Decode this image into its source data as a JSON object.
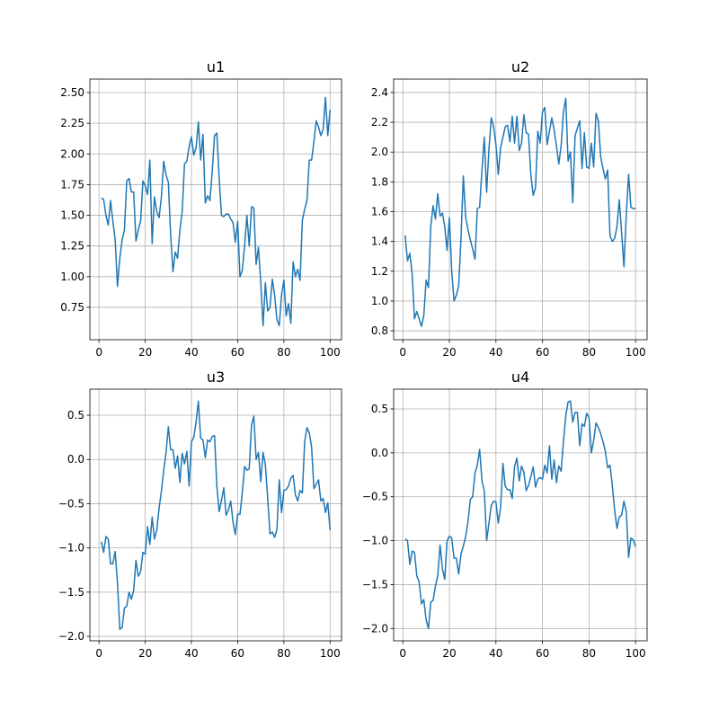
{
  "chart_data": [
    {
      "type": "line",
      "title": "u1",
      "color": "#1f77b4",
      "grid": true,
      "x": [
        1,
        2,
        3,
        4,
        5,
        6,
        7,
        8,
        9,
        10,
        11,
        12,
        13,
        14,
        15,
        16,
        17,
        18,
        19,
        20,
        21,
        22,
        23,
        24,
        25,
        26,
        27,
        28,
        29,
        30,
        31,
        32,
        33,
        34,
        35,
        36,
        37,
        38,
        39,
        40,
        41,
        42,
        43,
        44,
        45,
        46,
        47,
        48,
        49,
        50,
        51,
        52,
        53,
        54,
        55,
        56,
        57,
        58,
        59,
        60,
        61,
        62,
        63,
        64,
        65,
        66,
        67,
        68,
        69,
        70,
        71,
        72,
        73,
        74,
        75,
        76,
        77,
        78,
        79,
        80,
        81,
        82,
        83,
        84,
        85,
        86,
        87,
        88,
        89,
        90,
        91,
        92,
        93,
        94,
        95,
        96,
        97,
        98,
        99,
        100
      ],
      "values": [
        1.64,
        1.63,
        1.5,
        1.42,
        1.62,
        1.45,
        1.3,
        0.92,
        1.15,
        1.3,
        1.38,
        1.78,
        1.8,
        1.69,
        1.69,
        1.29,
        1.38,
        1.45,
        1.78,
        1.74,
        1.67,
        1.95,
        1.27,
        1.65,
        1.53,
        1.48,
        1.65,
        1.94,
        1.83,
        1.77,
        1.34,
        1.04,
        1.2,
        1.15,
        1.38,
        1.53,
        1.92,
        1.94,
        2.06,
        2.14,
        1.99,
        2.05,
        2.26,
        1.95,
        2.16,
        1.6,
        1.66,
        1.62,
        1.86,
        2.15,
        2.17,
        1.8,
        1.5,
        1.49,
        1.51,
        1.51,
        1.47,
        1.44,
        1.28,
        1.45,
        1.0,
        1.05,
        1.25,
        1.5,
        1.25,
        1.57,
        1.56,
        1.1,
        1.24,
        0.95,
        0.6,
        0.95,
        0.72,
        0.75,
        0.98,
        0.85,
        0.65,
        0.6,
        0.85,
        0.97,
        0.68,
        0.78,
        0.62,
        1.12,
        1.0,
        1.06,
        0.97,
        1.46,
        1.55,
        1.62,
        1.95,
        1.95,
        2.1,
        2.27,
        2.22,
        2.15,
        2.2,
        2.46,
        2.15,
        2.36
      ],
      "xlim": [
        -3.95,
        104.95
      ],
      "ylim": [
        0.486,
        2.61
      ],
      "xticks": [
        0,
        20,
        40,
        60,
        80,
        100
      ],
      "yticks": [
        {
          "value": 0.75,
          "label": "0.75"
        },
        {
          "value": 1.0,
          "label": "1.00"
        },
        {
          "value": 1.25,
          "label": "1.25"
        },
        {
          "value": 1.5,
          "label": "1.50"
        },
        {
          "value": 1.75,
          "label": "1.75"
        },
        {
          "value": 2.0,
          "label": "2.00"
        },
        {
          "value": 2.25,
          "label": "2.25"
        },
        {
          "value": 2.5,
          "label": "2.50"
        }
      ]
    },
    {
      "type": "line",
      "title": "u2",
      "color": "#1f77b4",
      "grid": true,
      "x": [
        1,
        2,
        3,
        4,
        5,
        6,
        7,
        8,
        9,
        10,
        11,
        12,
        13,
        14,
        15,
        16,
        17,
        18,
        19,
        20,
        21,
        22,
        23,
        24,
        25,
        26,
        27,
        28,
        29,
        30,
        31,
        32,
        33,
        34,
        35,
        36,
        37,
        38,
        39,
        40,
        41,
        42,
        43,
        44,
        45,
        46,
        47,
        48,
        49,
        50,
        51,
        52,
        53,
        54,
        55,
        56,
        57,
        58,
        59,
        60,
        61,
        62,
        63,
        64,
        65,
        66,
        67,
        68,
        69,
        70,
        71,
        72,
        73,
        74,
        75,
        76,
        77,
        78,
        79,
        80,
        81,
        82,
        83,
        84,
        85,
        86,
        87,
        88,
        89,
        90,
        91,
        92,
        93,
        94,
        95,
        96,
        97,
        98,
        99,
        100
      ],
      "values": [
        1.44,
        1.27,
        1.32,
        1.18,
        0.88,
        0.93,
        0.88,
        0.83,
        0.9,
        1.14,
        1.09,
        1.5,
        1.64,
        1.55,
        1.72,
        1.57,
        1.59,
        1.5,
        1.34,
        1.56,
        1.2,
        1.0,
        1.04,
        1.1,
        1.43,
        1.84,
        1.56,
        1.48,
        1.41,
        1.35,
        1.28,
        1.62,
        1.63,
        1.88,
        2.1,
        1.73,
        2.02,
        2.23,
        2.17,
        2.05,
        1.85,
        2.03,
        2.1,
        2.17,
        2.18,
        2.07,
        2.24,
        2.06,
        2.24,
        2.01,
        2.06,
        2.25,
        2.13,
        2.12,
        1.85,
        1.71,
        1.76,
        2.14,
        2.06,
        2.27,
        2.3,
        2.05,
        2.14,
        2.23,
        2.15,
        2.04,
        1.92,
        2.04,
        2.27,
        2.36,
        1.94,
        2.0,
        1.66,
        2.11,
        2.16,
        2.21,
        1.89,
        2.13,
        1.9,
        1.89,
        2.06,
        1.9,
        2.26,
        2.21,
        1.97,
        1.89,
        1.82,
        1.88,
        1.44,
        1.4,
        1.42,
        1.5,
        1.68,
        1.46,
        1.23,
        1.58,
        1.85,
        1.63,
        1.62,
        1.62
      ],
      "xlim": [
        -3.95,
        104.95
      ],
      "ylim": [
        0.74,
        2.49
      ],
      "xticks": [
        0,
        20,
        40,
        60,
        80,
        100
      ],
      "yticks": [
        {
          "value": 0.8,
          "label": "0.8"
        },
        {
          "value": 1.0,
          "label": "1.0"
        },
        {
          "value": 1.2,
          "label": "1.2"
        },
        {
          "value": 1.4,
          "label": "1.4"
        },
        {
          "value": 1.6,
          "label": "1.6"
        },
        {
          "value": 1.8,
          "label": "1.8"
        },
        {
          "value": 2.0,
          "label": "2.0"
        },
        {
          "value": 2.2,
          "label": "2.2"
        },
        {
          "value": 2.4,
          "label": "2.4"
        }
      ]
    },
    {
      "type": "line",
      "title": "u3",
      "color": "#1f77b4",
      "grid": true,
      "x": [
        1,
        2,
        3,
        4,
        5,
        6,
        7,
        8,
        9,
        10,
        11,
        12,
        13,
        14,
        15,
        16,
        17,
        18,
        19,
        20,
        21,
        22,
        23,
        24,
        25,
        26,
        27,
        28,
        29,
        30,
        31,
        32,
        33,
        34,
        35,
        36,
        37,
        38,
        39,
        40,
        41,
        42,
        43,
        44,
        45,
        46,
        47,
        48,
        49,
        50,
        51,
        52,
        53,
        54,
        55,
        56,
        57,
        58,
        59,
        60,
        61,
        62,
        63,
        64,
        65,
        66,
        67,
        68,
        69,
        70,
        71,
        72,
        73,
        74,
        75,
        76,
        77,
        78,
        79,
        80,
        81,
        82,
        83,
        84,
        85,
        86,
        87,
        88,
        89,
        90,
        91,
        92,
        93,
        94,
        95,
        96,
        97,
        98,
        99,
        100
      ],
      "values": [
        -0.93,
        -1.05,
        -0.87,
        -0.9,
        -1.18,
        -1.18,
        -1.04,
        -1.4,
        -1.92,
        -1.9,
        -1.68,
        -1.66,
        -1.5,
        -1.58,
        -1.48,
        -1.14,
        -1.32,
        -1.27,
        -1.05,
        -1.07,
        -0.76,
        -0.96,
        -0.65,
        -0.9,
        -0.8,
        -0.55,
        -0.36,
        -0.12,
        0.07,
        0.37,
        0.11,
        0.11,
        -0.1,
        0.04,
        -0.26,
        0.07,
        -0.05,
        0.09,
        -0.3,
        0.2,
        0.25,
        0.42,
        0.66,
        0.24,
        0.22,
        0.02,
        0.22,
        0.2,
        0.26,
        0.27,
        -0.3,
        -0.59,
        -0.46,
        -0.32,
        -0.63,
        -0.57,
        -0.47,
        -0.71,
        -0.85,
        -0.62,
        -0.62,
        -0.38,
        -0.08,
        -0.12,
        -0.11,
        0.39,
        0.49,
        0.0,
        0.08,
        -0.25,
        0.08,
        -0.06,
        -0.44,
        -0.84,
        -0.82,
        -0.88,
        -0.79,
        -0.23,
        -0.6,
        -0.35,
        -0.34,
        -0.3,
        -0.21,
        -0.18,
        -0.4,
        -0.47,
        -0.35,
        -0.38,
        0.2,
        0.36,
        0.3,
        0.14,
        -0.33,
        -0.28,
        -0.23,
        -0.47,
        -0.44,
        -0.6,
        -0.49,
        -0.8
      ],
      "xlim": [
        -3.95,
        104.95
      ],
      "ylim": [
        -2.05,
        0.795
      ],
      "xticks": [
        0,
        20,
        40,
        60,
        80,
        100
      ],
      "yticks": [
        {
          "value": -2.0,
          "label": "−2.0"
        },
        {
          "value": -1.5,
          "label": "−1.5"
        },
        {
          "value": -1.0,
          "label": "−1.0"
        },
        {
          "value": -0.5,
          "label": "−0.5"
        },
        {
          "value": 0.0,
          "label": "0.0"
        },
        {
          "value": 0.5,
          "label": "0.5"
        }
      ]
    },
    {
      "type": "line",
      "title": "u4",
      "color": "#1f77b4",
      "grid": true,
      "x": [
        1,
        2,
        3,
        4,
        5,
        6,
        7,
        8,
        9,
        10,
        11,
        12,
        13,
        14,
        15,
        16,
        17,
        18,
        19,
        20,
        21,
        22,
        23,
        24,
        25,
        26,
        27,
        28,
        29,
        30,
        31,
        32,
        33,
        34,
        35,
        36,
        37,
        38,
        39,
        40,
        41,
        42,
        43,
        44,
        45,
        46,
        47,
        48,
        49,
        50,
        51,
        52,
        53,
        54,
        55,
        56,
        57,
        58,
        59,
        60,
        61,
        62,
        63,
        64,
        65,
        66,
        67,
        68,
        69,
        70,
        71,
        72,
        73,
        74,
        75,
        76,
        77,
        78,
        79,
        80,
        81,
        82,
        83,
        84,
        85,
        86,
        87,
        88,
        89,
        90,
        91,
        92,
        93,
        94,
        95,
        96,
        97,
        98,
        99,
        100
      ],
      "values": [
        -0.98,
        -1.0,
        -1.27,
        -1.12,
        -1.13,
        -1.4,
        -1.47,
        -1.72,
        -1.67,
        -1.9,
        -2.0,
        -1.7,
        -1.68,
        -1.52,
        -1.4,
        -1.05,
        -1.32,
        -1.44,
        -1.0,
        -0.95,
        -0.97,
        -1.2,
        -1.2,
        -1.38,
        -1.15,
        -1.06,
        -0.95,
        -0.78,
        -0.53,
        -0.5,
        -0.23,
        -0.14,
        0.04,
        -0.32,
        -0.43,
        -1.0,
        -0.8,
        -0.6,
        -0.55,
        -0.56,
        -0.8,
        -0.62,
        -0.12,
        -0.38,
        -0.42,
        -0.42,
        -0.52,
        -0.16,
        -0.06,
        -0.32,
        -0.15,
        -0.22,
        -0.43,
        -0.37,
        -0.27,
        -0.16,
        -0.39,
        -0.3,
        -0.28,
        -0.3,
        -0.14,
        -0.23,
        0.08,
        -0.3,
        -0.08,
        -0.34,
        -0.15,
        -0.21,
        0.13,
        0.42,
        0.58,
        0.59,
        0.35,
        0.46,
        0.46,
        0.08,
        0.33,
        0.3,
        0.45,
        0.4,
        0.0,
        0.14,
        0.34,
        0.29,
        0.22,
        0.13,
        0.02,
        -0.17,
        -0.14,
        -0.37,
        -0.65,
        -0.86,
        -0.73,
        -0.71,
        -0.55,
        -0.67,
        -1.19,
        -0.97,
        -0.99,
        -1.07
      ],
      "xlim": [
        -3.95,
        104.95
      ],
      "ylim": [
        -2.14,
        0.725
      ],
      "xticks": [
        0,
        20,
        40,
        60,
        80,
        100
      ],
      "yticks": [
        {
          "value": -2.0,
          "label": "−2.0"
        },
        {
          "value": -1.5,
          "label": "−1.5"
        },
        {
          "value": -1.0,
          "label": "−1.0"
        },
        {
          "value": -0.5,
          "label": "−0.5"
        },
        {
          "value": 0.0,
          "label": "0.0"
        },
        {
          "value": 0.5,
          "label": "0.5"
        }
      ]
    }
  ]
}
